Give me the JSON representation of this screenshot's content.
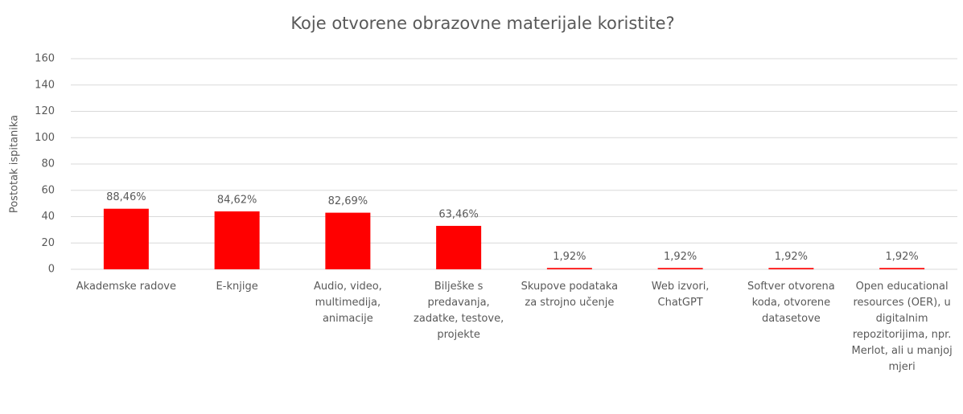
{
  "chart_data": {
    "type": "bar",
    "title": "Koje otvorene obrazovne materijale koristite?",
    "y_label": "Postotak ispitanika",
    "categories": [
      "Akademske radove",
      "E-knjige",
      "Audio, video, multimedija, animacije",
      "Bilješke s predavanja, zadatke, testove, projekte",
      "Skupove podataka za strojno učenje",
      "Web izvori, ChatGPT",
      "Softver otvorena koda, otvorene datasetove",
      "Open educational resources (OER), u digitalnim repozitorijima, npr. Merlot, ali u manjoj mjeri"
    ],
    "values": [
      46,
      44,
      43,
      33,
      1,
      1,
      1,
      1
    ],
    "value_labels": [
      "88,46%",
      "84,62%",
      "82,69%",
      "63,46%",
      "1,92%",
      "1,92%",
      "1,92%",
      "1,92%"
    ],
    "color": "#ff0000",
    "ylim": [
      0,
      160
    ],
    "yticks": [
      0,
      20,
      40,
      60,
      80,
      100,
      120,
      140,
      160
    ],
    "grid": true
  }
}
